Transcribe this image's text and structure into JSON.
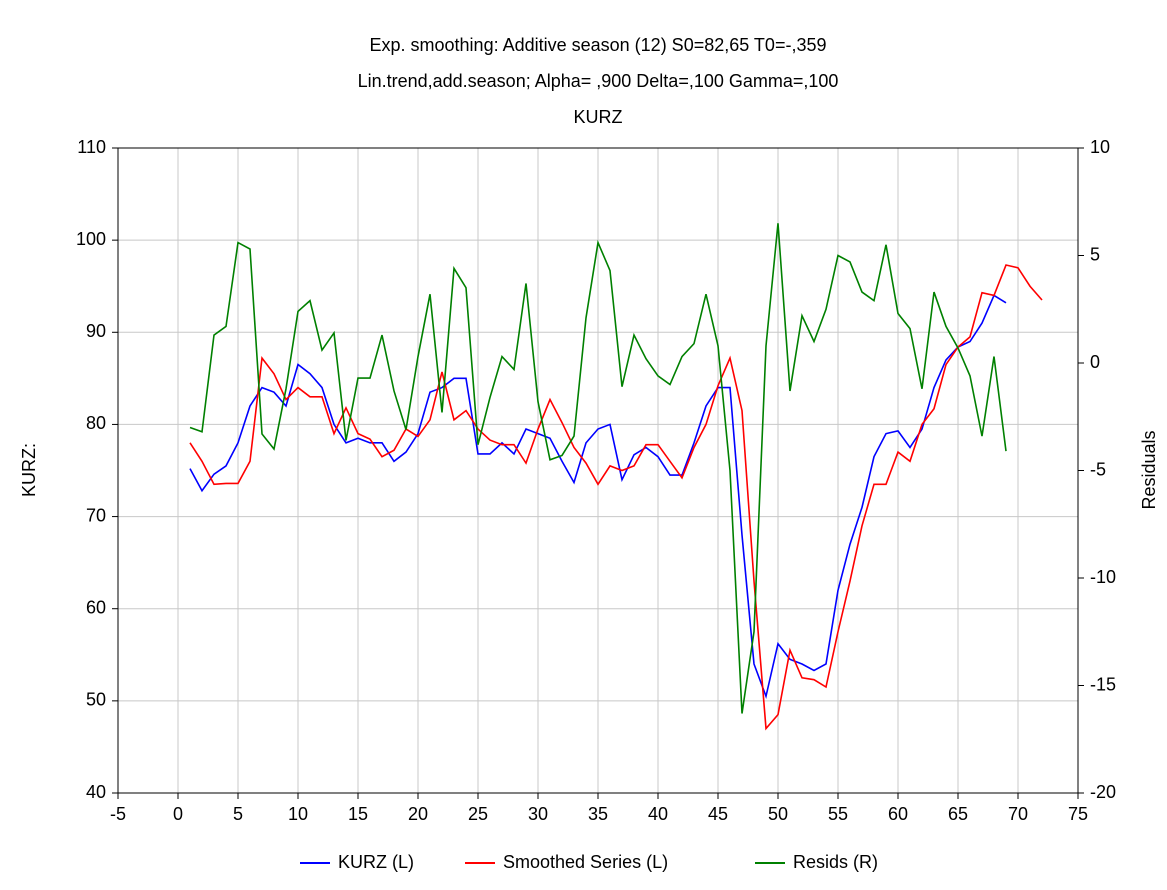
{
  "chart_data": {
    "type": "line",
    "title": "Exp. smoothing: Additive season (12) S0=82,65 T0=-,359",
    "subtitle": "Lin.trend,add.season; Alpha=  ,900 Delta=,100 Gamma=,100",
    "subtitle2": "KURZ",
    "ylabel": "KURZ:",
    "y2label": "Residuals",
    "xlim": [
      -5,
      75
    ],
    "xticks": [
      -5,
      0,
      5,
      10,
      15,
      20,
      25,
      30,
      35,
      40,
      45,
      50,
      55,
      60,
      65,
      70,
      75
    ],
    "ylim": [
      40,
      110
    ],
    "yticks": [
      40,
      50,
      60,
      70,
      80,
      90,
      100,
      110
    ],
    "y2lim": [
      -20,
      10
    ],
    "y2ticks": [
      -20,
      -15,
      -10,
      -5,
      0,
      5,
      10
    ],
    "grid": true,
    "legend": "bottom",
    "x": [
      1,
      2,
      3,
      4,
      5,
      6,
      7,
      8,
      9,
      10,
      11,
      12,
      13,
      14,
      15,
      16,
      17,
      18,
      19,
      20,
      21,
      22,
      23,
      24,
      25,
      26,
      27,
      28,
      29,
      30,
      31,
      32,
      33,
      34,
      35,
      36,
      37,
      38,
      39,
      40,
      41,
      42,
      43,
      44,
      45,
      46,
      47,
      48,
      49,
      50,
      51,
      52,
      53,
      54,
      55,
      56,
      57,
      58,
      59,
      60,
      61,
      62,
      63,
      64,
      65,
      66,
      67,
      68,
      69,
      70,
      71,
      72
    ],
    "series": [
      {
        "name": "KURZ (L)",
        "color": "#0000ff",
        "values": [
          75.2,
          72.8,
          74.6,
          75.5,
          78,
          82,
          84,
          83.5,
          82,
          86.5,
          85.5,
          84,
          80,
          78,
          78.5,
          78,
          78,
          76,
          77,
          79,
          83.5,
          84,
          85,
          85,
          76.8,
          76.8,
          78,
          76.8,
          79.5,
          79,
          78.5,
          76,
          73.7,
          78,
          79.5,
          80,
          74,
          76.7,
          77.5,
          76.5,
          74.5,
          74.5,
          78,
          82,
          84,
          84,
          68,
          54,
          50.5,
          56.2,
          54.5,
          54,
          53.3,
          54,
          62,
          67,
          71,
          76.5,
          79,
          79.3,
          77.5,
          79.5,
          84,
          87,
          88.4,
          89,
          91,
          94,
          93.2,
          null,
          null,
          null
        ]
      },
      {
        "name": "Smoothed Series (L)",
        "color": "#ff0000",
        "values": [
          78,
          76,
          73.5,
          73.6,
          73.6,
          76,
          87.2,
          85.5,
          82.7,
          84,
          83,
          83,
          79,
          81.8,
          79,
          78.4,
          76.5,
          77.2,
          79.5,
          78.7,
          80.5,
          85.7,
          80.5,
          81.5,
          79.5,
          78.3,
          77.8,
          77.8,
          75.8,
          79.5,
          82.7,
          80.2,
          77.5,
          75.8,
          73.5,
          75.5,
          75,
          75.5,
          77.8,
          77.8,
          76,
          74.2,
          77.5,
          80,
          84.2,
          87.2,
          81.5,
          63,
          47,
          48.5,
          55.5,
          52.5,
          52.3,
          51.5,
          57.5,
          63,
          69,
          73.5,
          73.5,
          77,
          76,
          80,
          81.7,
          86.5,
          88.4,
          89.5,
          94.3,
          94,
          97.3,
          97,
          95,
          93.5
        ]
      },
      {
        "name": "Resids (R)",
        "color": "#008000",
        "axis": "y2",
        "values": [
          -3,
          -3.2,
          1.3,
          1.7,
          5.6,
          5.3,
          -3.3,
          -4,
          -1.2,
          2.4,
          2.9,
          0.6,
          1.4,
          -3.6,
          -0.7,
          -0.7,
          1.3,
          -1.3,
          -3.1,
          0.3,
          3.2,
          -2.3,
          4.4,
          3.5,
          -3.8,
          -1.6,
          0.3,
          -0.3,
          3.7,
          -1.8,
          -4.5,
          -4.3,
          -3.4,
          2.1,
          5.6,
          4.3,
          -1.1,
          1.3,
          0.2,
          -0.6,
          -1,
          0.3,
          0.9,
          3.2,
          0.8,
          -5,
          -16.3,
          -12.5,
          0.8,
          6.5,
          -1.3,
          2.2,
          1,
          2.5,
          5,
          4.7,
          3.3,
          2.9,
          5.5,
          2.3,
          1.6,
          -1.2,
          3.3,
          1.7,
          0.7,
          -0.6,
          -3.4,
          0.3,
          -4.1,
          null,
          null,
          null
        ]
      }
    ]
  }
}
